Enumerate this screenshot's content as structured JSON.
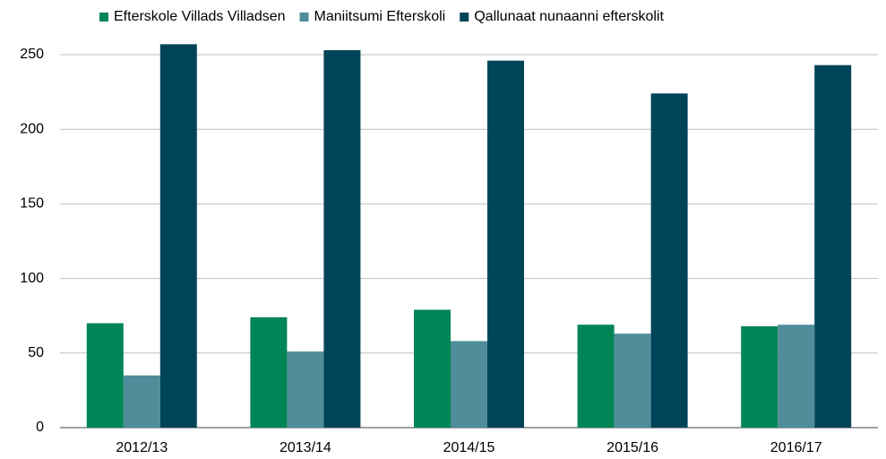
{
  "chart_data": {
    "type": "bar",
    "categories": [
      "2012/13",
      "2013/14",
      "2014/15",
      "2015/16",
      "2016/17"
    ],
    "series": [
      {
        "name": "Efterskole Villads Villadsen",
        "color": "#008556",
        "values": [
          70,
          74,
          79,
          69,
          68
        ]
      },
      {
        "name": "Maniitsumi Efterskoli",
        "color": "#4e8d99",
        "values": [
          35,
          51,
          58,
          63,
          69
        ]
      },
      {
        "name": "Qallunaat nunaanni efterskolit",
        "color": "#00445a",
        "values": [
          257,
          253,
          246,
          224,
          243
        ]
      }
    ],
    "ylim": [
      0,
      270
    ],
    "yticks": [
      0,
      50,
      100,
      150,
      200,
      250
    ],
    "grid": true,
    "legend": "top"
  }
}
